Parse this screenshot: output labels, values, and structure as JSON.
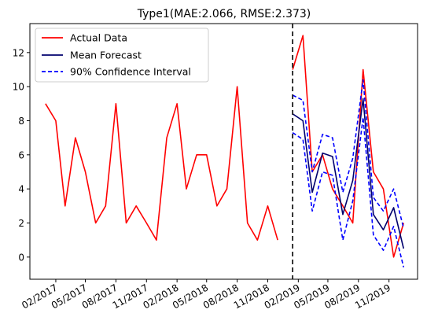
{
  "chart_data": {
    "type": "line",
    "title": "Type1(MAE:2.066, RMSE:2.373)",
    "xlabel": "",
    "ylabel": "",
    "ylim": [
      -1.3,
      13.7
    ],
    "xlim": [
      "2016-11-15",
      "2020-01-26"
    ],
    "y_ticks": [
      0,
      2,
      4,
      6,
      8,
      10,
      12
    ],
    "x_ticks": [
      {
        "date": "2017-02-01",
        "label": "02/2017"
      },
      {
        "date": "2017-05-01",
        "label": "05/2017"
      },
      {
        "date": "2017-08-01",
        "label": "08/2017"
      },
      {
        "date": "2017-11-01",
        "label": "11/2017"
      },
      {
        "date": "2018-02-01",
        "label": "02/2018"
      },
      {
        "date": "2018-05-01",
        "label": "05/2018"
      },
      {
        "date": "2018-08-01",
        "label": "08/2018"
      },
      {
        "date": "2018-11-01",
        "label": "11/2018"
      },
      {
        "date": "2019-02-01",
        "label": "02/2019"
      },
      {
        "date": "2019-05-01",
        "label": "05/2019"
      },
      {
        "date": "2019-08-01",
        "label": "08/2019"
      },
      {
        "date": "2019-11-01",
        "label": "11/2019"
      }
    ],
    "grid": false,
    "legend": {
      "placement": "top-left",
      "entries": [
        {
          "label": "Actual Data",
          "color": "#ff0000",
          "style": "solid"
        },
        {
          "label": "Mean Forecast",
          "color": "#00006e",
          "style": "solid"
        },
        {
          "label": "90% Confidence Interval",
          "color": "#0000ff",
          "style": "dashed"
        }
      ]
    },
    "forecast_start": "2019-01-15",
    "series": [
      {
        "name": "Actual Data",
        "color": "#ff0000",
        "style": "solid",
        "points": [
          {
            "x": "2017-01-01",
            "y": 9
          },
          {
            "x": "2017-02-01",
            "y": 8
          },
          {
            "x": "2017-03-01",
            "y": 3
          },
          {
            "x": "2017-04-01",
            "y": 7
          },
          {
            "x": "2017-05-01",
            "y": 5
          },
          {
            "x": "2017-06-01",
            "y": 2
          },
          {
            "x": "2017-07-01",
            "y": 3
          },
          {
            "x": "2017-08-01",
            "y": 9
          },
          {
            "x": "2017-09-01",
            "y": 2
          },
          {
            "x": "2017-10-01",
            "y": 3
          },
          {
            "x": "2017-11-01",
            "y": 2
          },
          {
            "x": "2017-12-01",
            "y": 1
          },
          {
            "x": "2018-01-01",
            "y": 7
          },
          {
            "x": "2018-02-01",
            "y": 9
          },
          {
            "x": "2018-03-01",
            "y": 4
          },
          {
            "x": "2018-04-01",
            "y": 6
          },
          {
            "x": "2018-05-01",
            "y": 6
          },
          {
            "x": "2018-06-01",
            "y": 3
          },
          {
            "x": "2018-07-01",
            "y": 4
          },
          {
            "x": "2018-08-01",
            "y": 10
          },
          {
            "x": "2018-09-01",
            "y": 2
          },
          {
            "x": "2018-10-01",
            "y": 1
          },
          {
            "x": "2018-11-01",
            "y": 3
          },
          {
            "x": "2018-12-01",
            "y": 1
          }
        ]
      },
      {
        "name": "Actual Data",
        "color": "#ff0000",
        "style": "solid",
        "points": [
          {
            "x": "2019-01-15",
            "y": 11
          },
          {
            "x": "2019-02-15",
            "y": 13
          },
          {
            "x": "2019-03-15",
            "y": 5
          },
          {
            "x": "2019-04-15",
            "y": 6
          },
          {
            "x": "2019-05-15",
            "y": 4
          },
          {
            "x": "2019-06-15",
            "y": 3
          },
          {
            "x": "2019-07-15",
            "y": 2
          },
          {
            "x": "2019-08-15",
            "y": 11
          },
          {
            "x": "2019-09-15",
            "y": 5
          },
          {
            "x": "2019-10-15",
            "y": 4
          },
          {
            "x": "2019-11-15",
            "y": 0
          },
          {
            "x": "2019-12-15",
            "y": 2
          }
        ]
      },
      {
        "name": "Mean Forecast",
        "color": "#00006e",
        "style": "solid",
        "points": [
          {
            "x": "2019-01-15",
            "y": 8.4
          },
          {
            "x": "2019-02-15",
            "y": 8.0
          },
          {
            "x": "2019-03-15",
            "y": 3.8
          },
          {
            "x": "2019-04-15",
            "y": 6.1
          },
          {
            "x": "2019-05-15",
            "y": 5.9
          },
          {
            "x": "2019-06-15",
            "y": 2.5
          },
          {
            "x": "2019-07-15",
            "y": 4.5
          },
          {
            "x": "2019-08-15",
            "y": 9.3
          },
          {
            "x": "2019-09-15",
            "y": 2.5
          },
          {
            "x": "2019-10-15",
            "y": 1.6
          },
          {
            "x": "2019-11-15",
            "y": 2.9
          },
          {
            "x": "2019-12-15",
            "y": 0.5
          }
        ]
      },
      {
        "name": "90% Confidence Interval",
        "color": "#0000ff",
        "style": "dashed",
        "points": [
          {
            "x": "2019-01-15",
            "y": 9.5
          },
          {
            "x": "2019-02-15",
            "y": 9.2
          },
          {
            "x": "2019-03-15",
            "y": 5.0
          },
          {
            "x": "2019-04-15",
            "y": 7.2
          },
          {
            "x": "2019-05-15",
            "y": 7.0
          },
          {
            "x": "2019-06-15",
            "y": 3.8
          },
          {
            "x": "2019-07-15",
            "y": 5.8
          },
          {
            "x": "2019-08-15",
            "y": 10.4
          },
          {
            "x": "2019-09-15",
            "y": 3.5
          },
          {
            "x": "2019-10-15",
            "y": 2.7
          },
          {
            "x": "2019-11-15",
            "y": 4.0
          },
          {
            "x": "2019-12-15",
            "y": 1.7
          }
        ]
      },
      {
        "name": "90% Confidence Interval",
        "color": "#0000ff",
        "style": "dashed",
        "points": [
          {
            "x": "2019-01-15",
            "y": 7.3
          },
          {
            "x": "2019-02-15",
            "y": 6.9
          },
          {
            "x": "2019-03-15",
            "y": 2.7
          },
          {
            "x": "2019-04-15",
            "y": 5.0
          },
          {
            "x": "2019-05-15",
            "y": 4.8
          },
          {
            "x": "2019-06-15",
            "y": 1.0
          },
          {
            "x": "2019-07-15",
            "y": 3.3
          },
          {
            "x": "2019-08-15",
            "y": 8.2
          },
          {
            "x": "2019-09-15",
            "y": 1.3
          },
          {
            "x": "2019-10-15",
            "y": 0.4
          },
          {
            "x": "2019-11-15",
            "y": 1.8
          },
          {
            "x": "2019-12-15",
            "y": -0.6
          }
        ]
      }
    ]
  }
}
